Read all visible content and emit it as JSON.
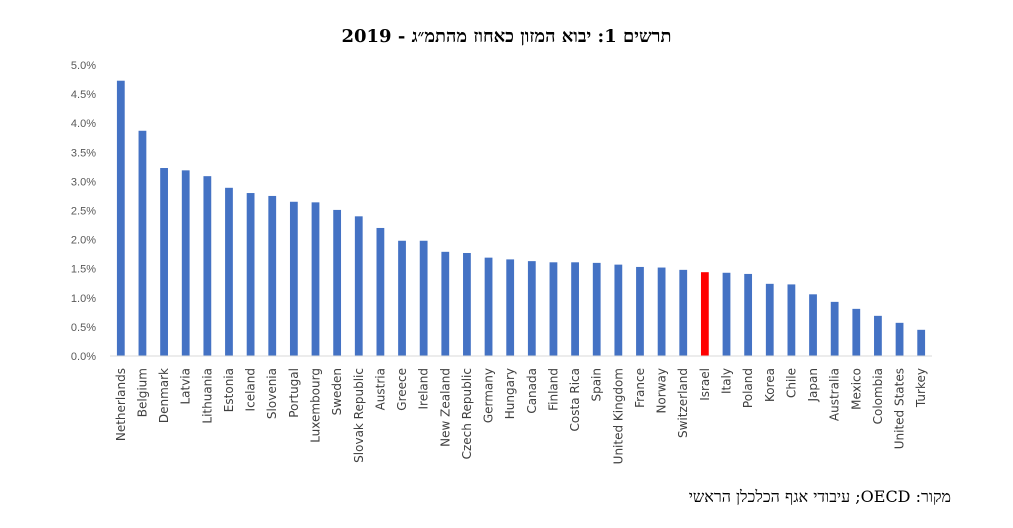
{
  "chart_data": {
    "type": "bar",
    "title": "תרשים 1: יבוא המזון כאחוז מהתמ״ג - 2019",
    "categories": [
      "Netherlands",
      "Belgium",
      "Denmark",
      "Latvia",
      "Lithuania",
      "Estonia",
      "Iceland",
      "Slovenia",
      "Portugal",
      "Luxembourg",
      "Sweden",
      "Slovak Republic",
      "Austria",
      "Greece",
      "Ireland",
      "New Zealand",
      "Czech Republic",
      "Germany",
      "Hungary",
      "Canada",
      "Finland",
      "Costa Rica",
      "Spain",
      "United Kingdom",
      "France",
      "Norway",
      "Switzerland",
      "Israel",
      "Italy",
      "Poland",
      "Korea",
      "Chile",
      "Japan",
      "Australia",
      "Mexico",
      "Colombia",
      "United States",
      "Turkey"
    ],
    "values": [
      4.73,
      3.87,
      3.23,
      3.19,
      3.09,
      2.89,
      2.8,
      2.75,
      2.65,
      2.64,
      2.51,
      2.4,
      2.2,
      1.98,
      1.98,
      1.79,
      1.77,
      1.69,
      1.66,
      1.63,
      1.61,
      1.61,
      1.6,
      1.57,
      1.53,
      1.52,
      1.48,
      1.44,
      1.43,
      1.41,
      1.24,
      1.23,
      1.06,
      0.93,
      0.81,
      0.69,
      0.57,
      0.45
    ],
    "ylim": [
      0,
      5
    ],
    "yticks": [
      "0.0%",
      "0.5%",
      "1.0%",
      "1.5%",
      "2.0%",
      "2.5%",
      "3.0%",
      "3.5%",
      "4.0%",
      "4.5%",
      "5.0%"
    ],
    "xlabel": "",
    "ylabel": "",
    "grid": false,
    "bar_color": "#4472C4",
    "highlight": "Israel",
    "highlight_color": "#FF0000"
  },
  "source": "מקור: OECD; עיבודי אגף הכלכלן הראשי"
}
